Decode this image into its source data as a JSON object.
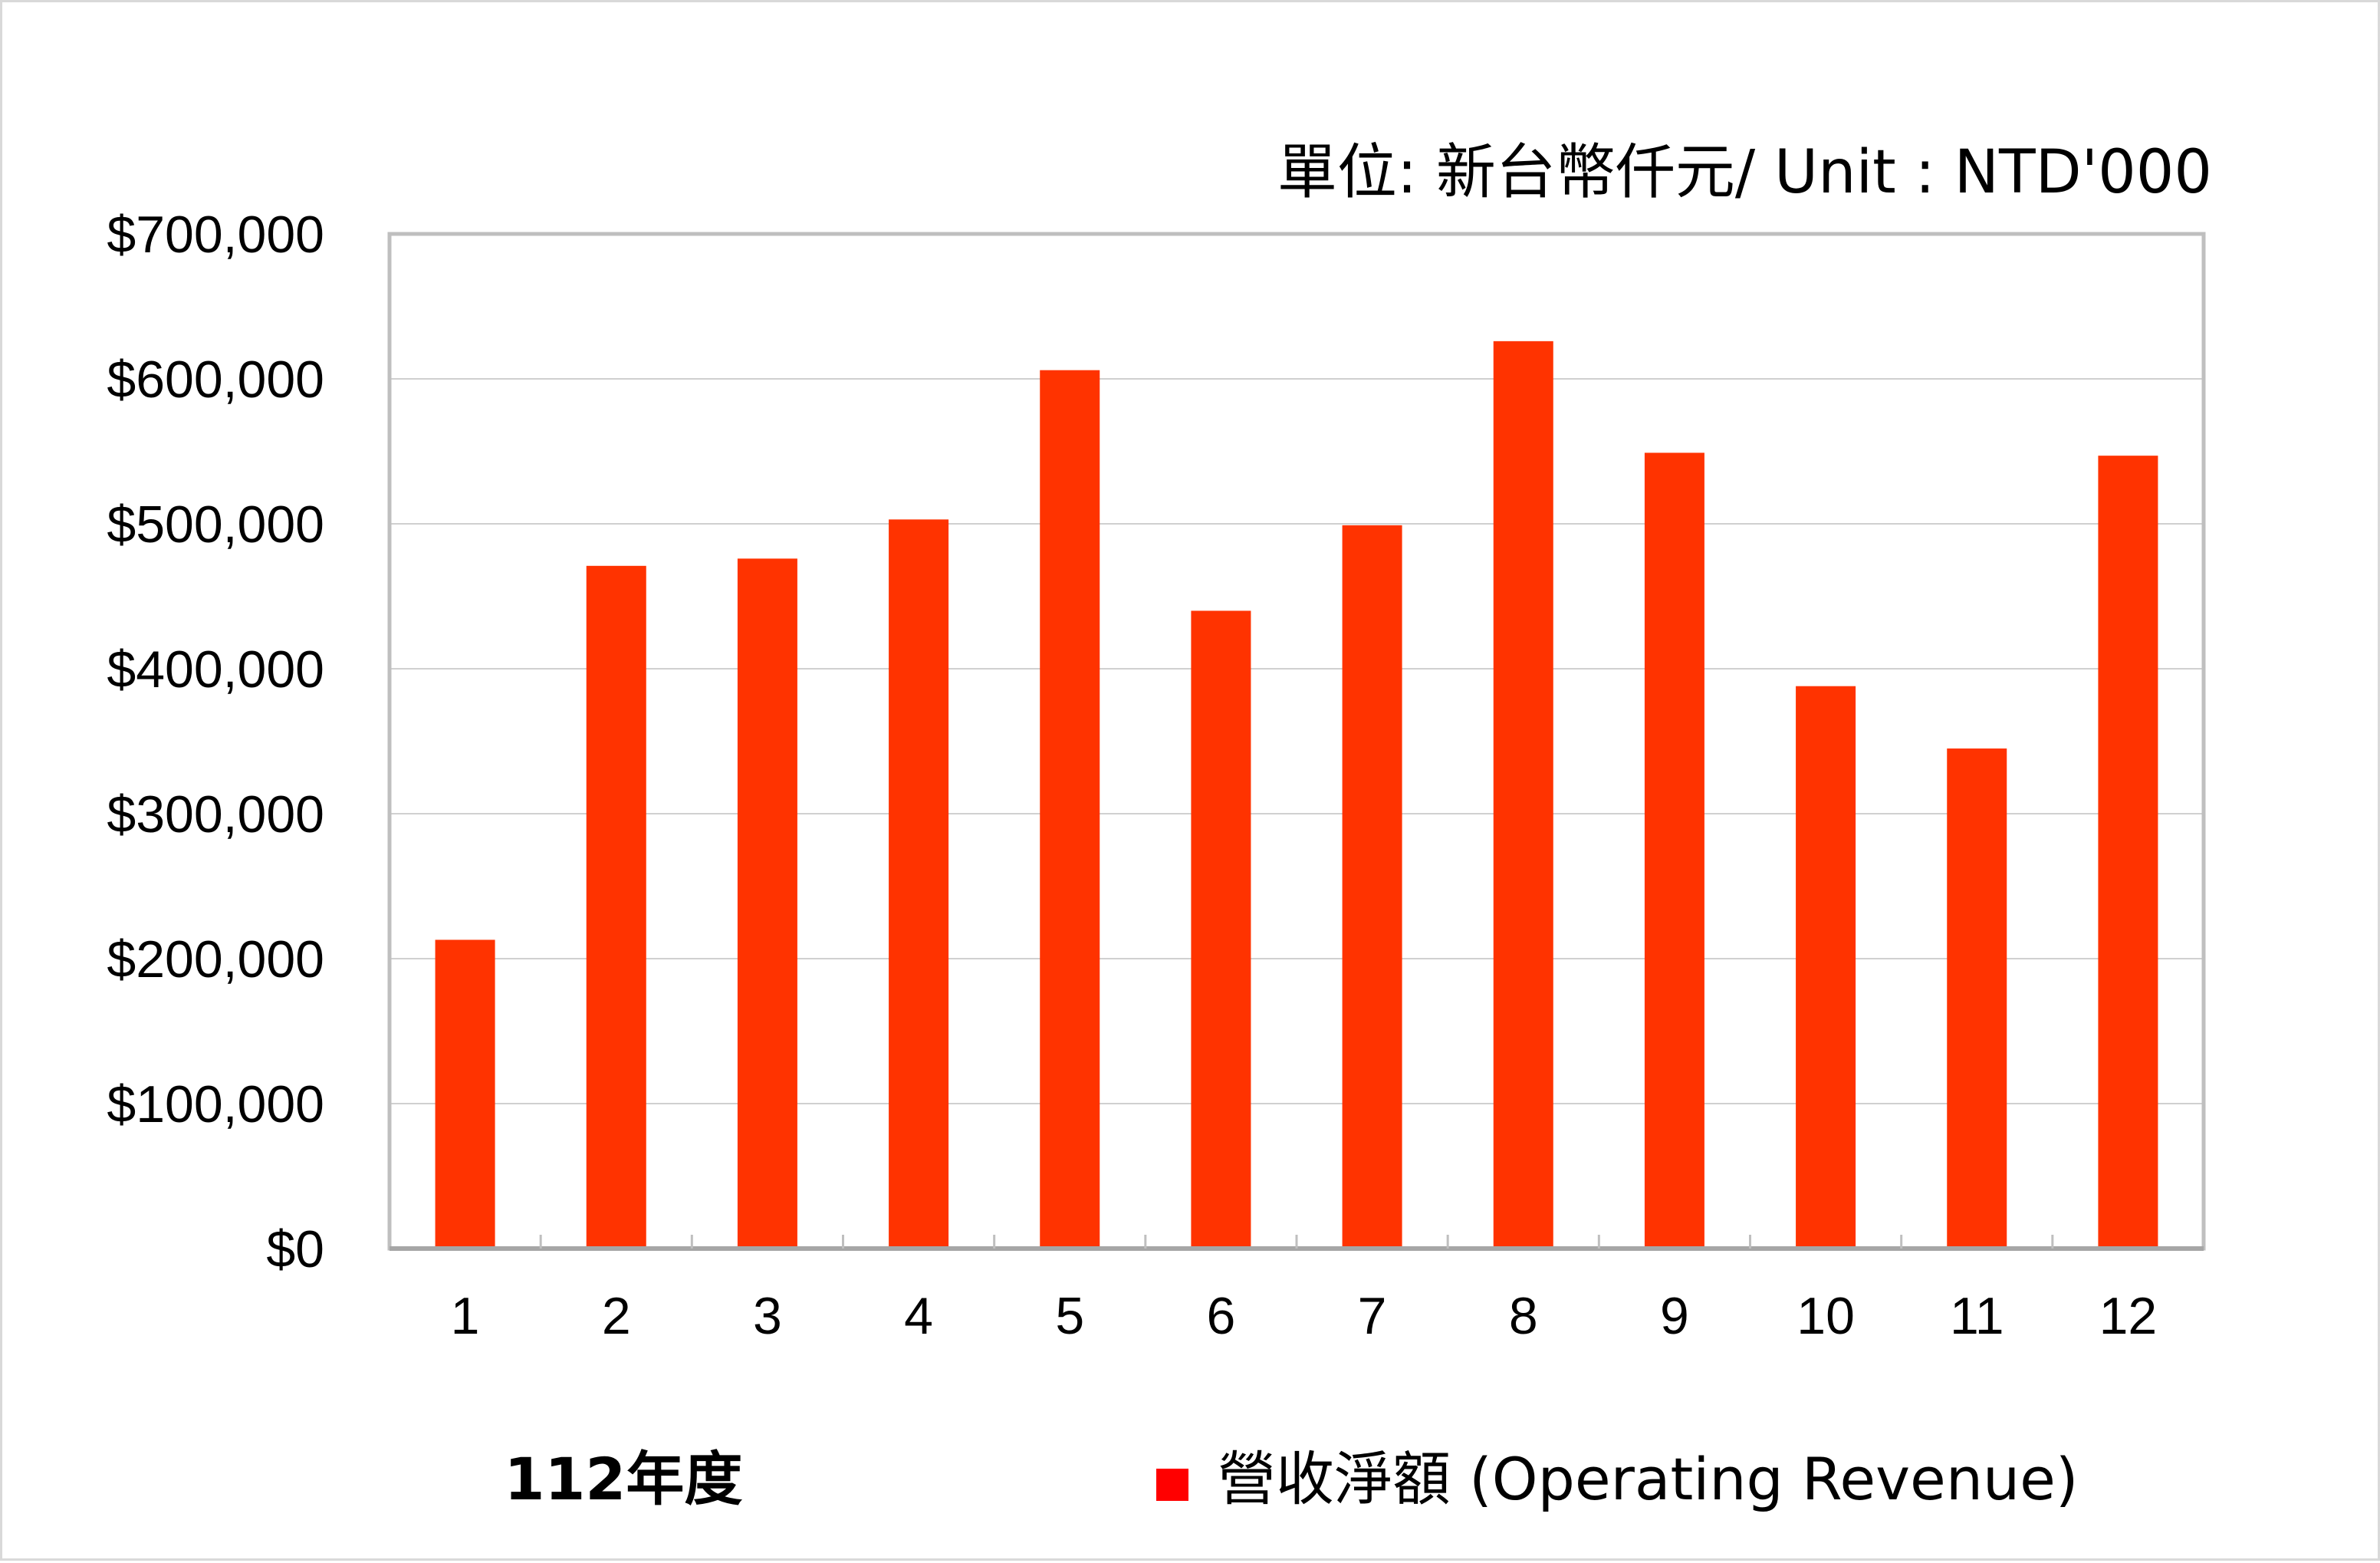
{
  "chart_data": {
    "type": "bar",
    "unit_note": "單位: 新台幣仟元/ Unit : NTD'000",
    "x_caption": "112年度",
    "categories": [
      "1",
      "2",
      "3",
      "4",
      "5",
      "6",
      "7",
      "8",
      "9",
      "10",
      "11",
      "12"
    ],
    "series": [
      {
        "name": "營收淨額 (Operating Revenue)",
        "color": "#ff3300",
        "values": [
          213000,
          471000,
          476000,
          503000,
          606000,
          440000,
          499000,
          626000,
          549000,
          388000,
          345000,
          547000
        ]
      }
    ],
    "ylim": [
      0,
      700000
    ],
    "yticks": [
      "$0",
      "$100,000",
      "$200,000",
      "$300,000",
      "$400,000",
      "$500,000",
      "$600,000",
      "$700,000"
    ],
    "ytick_values": [
      0,
      100000,
      200000,
      300000,
      400000,
      500000,
      600000,
      700000
    ],
    "grid": true,
    "legend_position": "bottom-right",
    "legend_marker_color": "#ff0000"
  }
}
